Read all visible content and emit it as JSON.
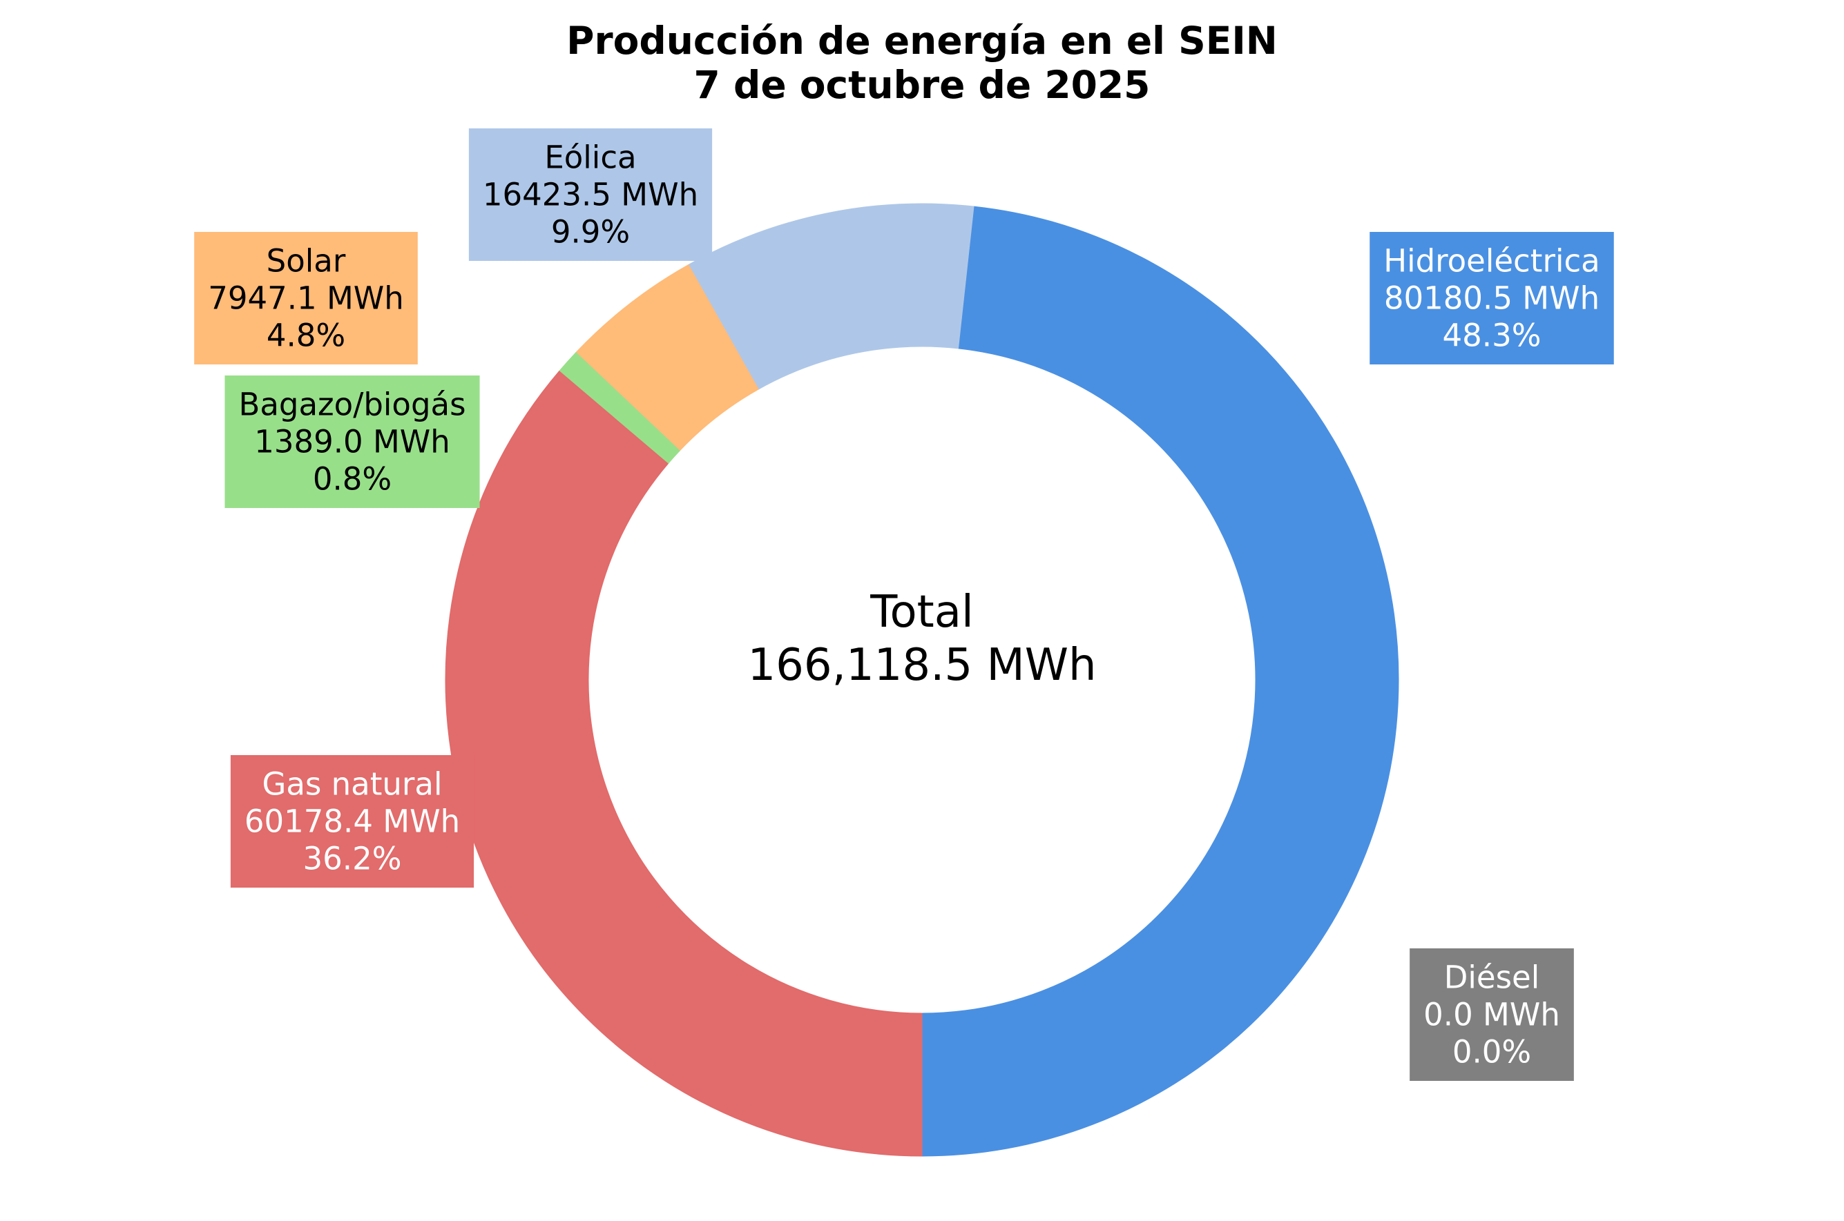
{
  "chart_data": {
    "type": "pie",
    "variant": "donut",
    "title": "Producción de energía en el SEIN",
    "subtitle": "7 de octubre de 2025",
    "center_label": "Total",
    "center_value": "166,118.5 MWh",
    "unit": "MWh",
    "start": "bottom",
    "direction": "counterclockwise",
    "slices": [
      {
        "name": "Hidroeléctrica",
        "value": 80180.5,
        "value_text": "80180.5 MWh",
        "percent_text": "48.3%",
        "color": "#4A90E2",
        "text_color": "#ffffff"
      },
      {
        "name": "Diésel",
        "value": 0.0,
        "value_text": "0.0 MWh",
        "percent_text": "0.0%",
        "color": "#808080",
        "text_color": "#ffffff"
      },
      {
        "name": "Eólica",
        "value": 16423.5,
        "value_text": "16423.5 MWh",
        "percent_text": "9.9%",
        "color": "#AEC7E8",
        "text_color": "#000000"
      },
      {
        "name": "Solar",
        "value": 7947.1,
        "value_text": "7947.1 MWh",
        "percent_text": "4.8%",
        "color": "#FFBB78",
        "text_color": "#000000"
      },
      {
        "name": "Bagazo/biogás",
        "value": 1389.0,
        "value_text": "1389.0 MWh",
        "percent_text": "0.8%",
        "color": "#98DF8A",
        "text_color": "#000000"
      },
      {
        "name": "Gas natural",
        "value": 60178.4,
        "value_text": "60178.4 MWh",
        "percent_text": "36.2%",
        "color": "#E26B6B",
        "text_color": "#ffffff"
      }
    ]
  }
}
